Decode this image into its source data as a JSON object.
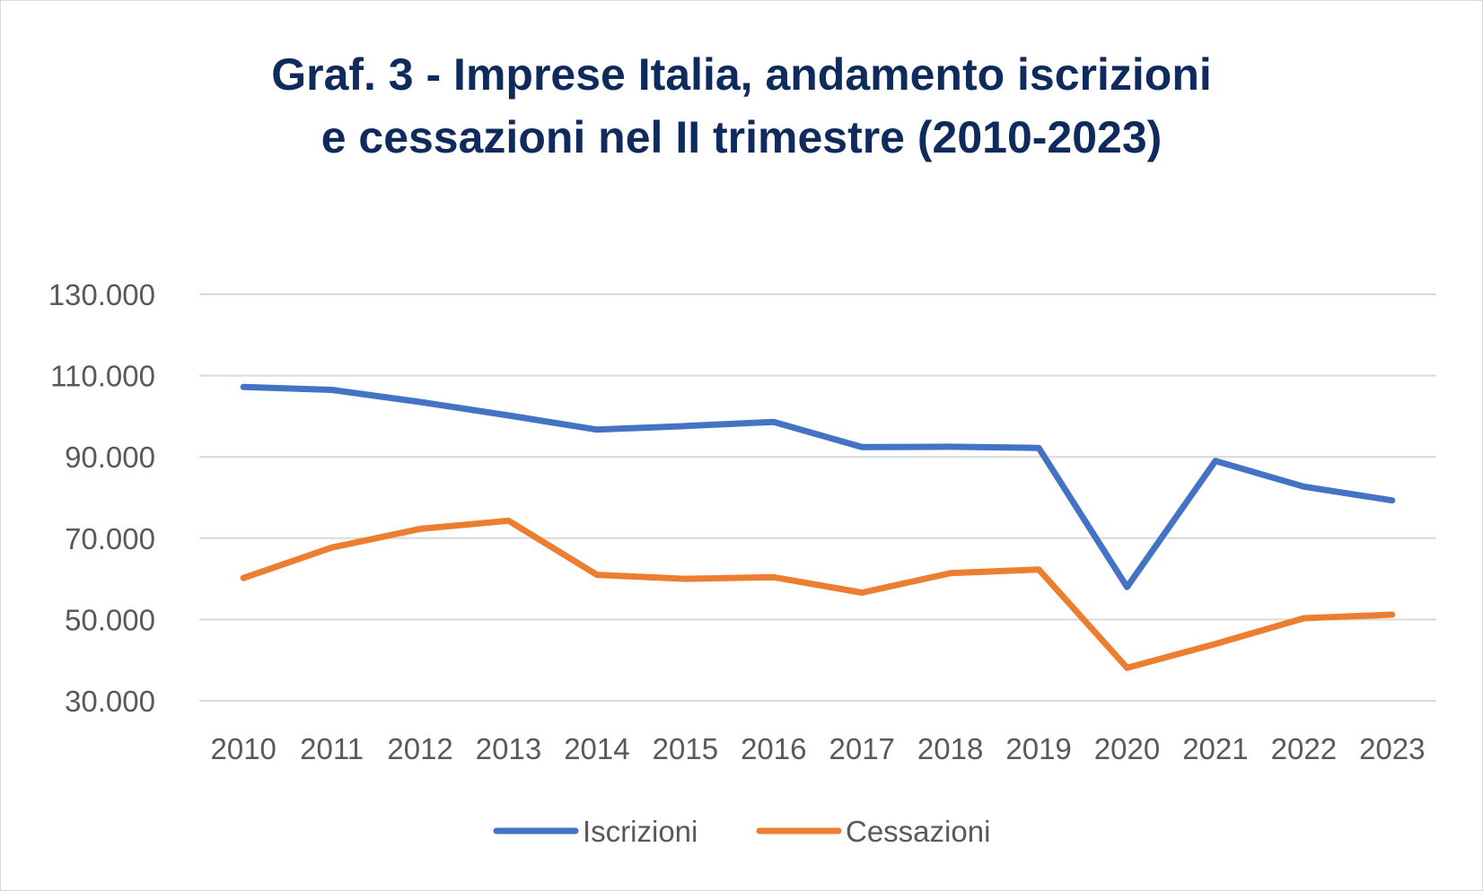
{
  "chart_data": {
    "type": "line",
    "title_line1": "Graf. 3 - Imprese Italia, andamento iscrizioni",
    "title_line2": "e cessazioni nel II trimestre (2010-2023)",
    "categories": [
      "2010",
      "2011",
      "2012",
      "2013",
      "2014",
      "2015",
      "2016",
      "2017",
      "2018",
      "2019",
      "2020",
      "2021",
      "2022",
      "2023"
    ],
    "y_ticks": [
      30000,
      50000,
      70000,
      90000,
      110000,
      130000
    ],
    "y_tick_labels": [
      "30.000",
      "50.000",
      "70.000",
      "90.000",
      "110.000",
      "130.000"
    ],
    "ylim": [
      30000,
      130000
    ],
    "grid": true,
    "legend_position": "bottom",
    "series": [
      {
        "name": "Iscrizioni",
        "color": "#4472c4",
        "values": [
          107200,
          106500,
          103500,
          100200,
          96700,
          97600,
          98600,
          92400,
          92500,
          92200,
          58000,
          89000,
          82700,
          79300
        ]
      },
      {
        "name": "Cessazioni",
        "color": "#ed7d31",
        "values": [
          60200,
          67700,
          72300,
          74300,
          61000,
          60000,
          60400,
          56600,
          61400,
          62300,
          38100,
          44000,
          50300,
          51200
        ]
      }
    ]
  }
}
